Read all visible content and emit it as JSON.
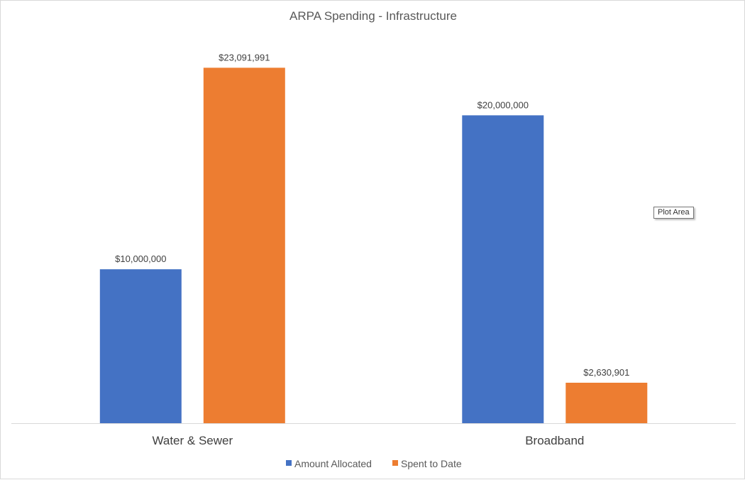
{
  "chart_data": {
    "type": "bar",
    "title": "ARPA Spending - Infrastructure",
    "categories": [
      "Water & Sewer",
      "Broadband"
    ],
    "series": [
      {
        "name": "Amount Allocated",
        "color": "#4472C4",
        "values": [
          10000000,
          20000000
        ],
        "labels": [
          "$10,000,000",
          "$20,000,000"
        ]
      },
      {
        "name": "Spent to Date",
        "color": "#ED7D31",
        "values": [
          23091991,
          2630901
        ],
        "labels": [
          "$23,091,991",
          "$2,630,901"
        ]
      }
    ],
    "ylim": [
      0,
      25000000
    ],
    "grid": false,
    "axis_visible": false,
    "legend_position": "bottom"
  },
  "tooltip": {
    "label": "Plot Area"
  }
}
